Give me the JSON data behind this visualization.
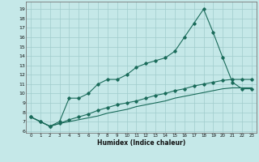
{
  "xlabel": "Humidex (Indice chaleur)",
  "background_color": "#c5e8e8",
  "grid_color": "#a0cccc",
  "line_color": "#1a6b5a",
  "xlim": [
    -0.5,
    23.5
  ],
  "ylim": [
    5.8,
    19.8
  ],
  "xticks": [
    0,
    1,
    2,
    3,
    4,
    5,
    6,
    7,
    8,
    9,
    10,
    11,
    12,
    13,
    14,
    15,
    16,
    17,
    18,
    19,
    20,
    21,
    22,
    23
  ],
  "yticks": [
    6,
    7,
    8,
    9,
    10,
    11,
    12,
    13,
    14,
    15,
    16,
    17,
    18,
    19
  ],
  "series1_x": [
    0,
    1,
    2,
    3,
    4,
    5,
    6,
    7,
    8,
    9,
    10,
    11,
    12,
    13,
    14,
    15,
    16,
    17,
    18,
    19,
    20,
    21,
    22,
    23
  ],
  "series1_y": [
    7.5,
    7.0,
    6.5,
    7.0,
    9.5,
    9.5,
    10.0,
    11.0,
    11.5,
    11.5,
    12.0,
    12.8,
    13.2,
    13.5,
    13.8,
    14.5,
    16.0,
    17.5,
    19.0,
    16.5,
    13.8,
    11.2,
    10.5,
    10.5
  ],
  "series2_x": [
    0,
    1,
    2,
    3,
    4,
    5,
    6,
    7,
    8,
    9,
    10,
    11,
    12,
    13,
    14,
    15,
    16,
    17,
    18,
    19,
    20,
    21,
    22,
    23
  ],
  "series2_y": [
    7.5,
    7.0,
    6.5,
    6.8,
    7.2,
    7.5,
    7.8,
    8.2,
    8.5,
    8.8,
    9.0,
    9.2,
    9.5,
    9.8,
    10.0,
    10.3,
    10.5,
    10.8,
    11.0,
    11.2,
    11.4,
    11.5,
    11.5,
    11.5
  ],
  "series3_x": [
    0,
    1,
    2,
    3,
    4,
    5,
    6,
    7,
    8,
    9,
    10,
    11,
    12,
    13,
    14,
    15,
    16,
    17,
    18,
    19,
    20,
    21,
    22,
    23
  ],
  "series3_y": [
    7.5,
    7.0,
    6.5,
    6.8,
    7.0,
    7.2,
    7.4,
    7.6,
    7.9,
    8.1,
    8.3,
    8.6,
    8.8,
    9.0,
    9.2,
    9.5,
    9.7,
    9.9,
    10.1,
    10.3,
    10.5,
    10.6,
    10.6,
    10.6
  ]
}
